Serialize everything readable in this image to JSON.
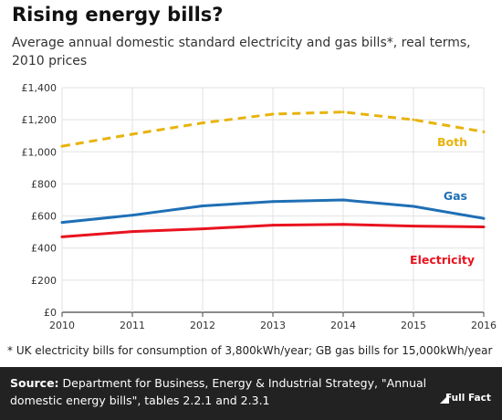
{
  "header": {
    "title": "Rising energy bills?",
    "subtitle": "Average annual domestic standard electricity and gas bills*, real terms, 2010 prices"
  },
  "footnote": "* UK electricity bills for consumption of 3,800kWh/year; GB gas bills for 15,000kWh/year",
  "footer": {
    "source_label": "Source:",
    "source_text": "Department for Business, Energy & Industrial Strategy, \"Annual domestic energy bills\", tables 2.2.1 and  2.3.1",
    "logo_text": "Full Fact"
  },
  "chart_data": {
    "type": "line",
    "x": [
      2010,
      2011,
      2012,
      2013,
      2014,
      2015,
      2016
    ],
    "ylim": [
      0,
      1400
    ],
    "yticks": [
      0,
      200,
      400,
      600,
      800,
      1000,
      1200,
      1400
    ],
    "ytick_labels": [
      "£0",
      "£200",
      "£400",
      "£600",
      "£800",
      "£1,000",
      "£1,200",
      "£1,400"
    ],
    "xtick_labels": [
      "2010",
      "2011",
      "2012",
      "2013",
      "2014",
      "2015",
      "2016"
    ],
    "grid": true,
    "series": [
      {
        "name": "Both",
        "values": [
          1035,
          1110,
          1180,
          1235,
          1248,
          1200,
          1125
        ],
        "color": "#e8b30a",
        "dashed": true
      },
      {
        "name": "Gas",
        "values": [
          560,
          605,
          663,
          690,
          700,
          660,
          585
        ],
        "color": "#1f6fb5",
        "dashed": false
      },
      {
        "name": "Electricity",
        "values": [
          470,
          503,
          520,
          543,
          548,
          537,
          532
        ],
        "color": "#e8131e",
        "dashed": false
      }
    ]
  }
}
